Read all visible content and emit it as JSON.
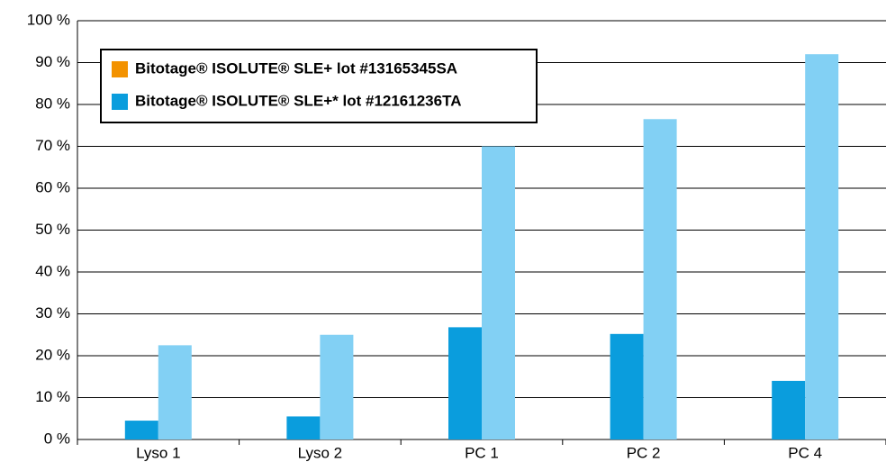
{
  "chart_data": {
    "type": "bar",
    "categories": [
      "Lyso 1",
      "Lyso 2",
      "PC 1",
      "PC 2",
      "PC 4"
    ],
    "series": [
      {
        "name": "Bitotage® ISOLUTE®  SLE+ lot #13165345SA",
        "color": "#0a9ddd",
        "legend_color": "#f39200",
        "values": [
          4.5,
          5.5,
          26.8,
          25.2,
          14
        ]
      },
      {
        "name": "Bitotage® ISOLUTE® SLE+* lot #12161236TA",
        "color": "#82d0f4",
        "legend_color": "#0a9ddd",
        "values": [
          22.5,
          25,
          70,
          76.5,
          92
        ]
      }
    ],
    "ylim": [
      0,
      100
    ],
    "yticks": [
      {
        "value": 0,
        "label": "0 %"
      },
      {
        "value": 10,
        "label": "10 %"
      },
      {
        "value": 20,
        "label": "20 %"
      },
      {
        "value": 30,
        "label": "30 %"
      },
      {
        "value": 40,
        "label": "40 %"
      },
      {
        "value": 50,
        "label": "50 %"
      },
      {
        "value": 60,
        "label": "60 %"
      },
      {
        "value": 70,
        "label": "70 %"
      },
      {
        "value": 80,
        "label": "80 %"
      },
      {
        "value": 90,
        "label": "90 %"
      },
      {
        "value": 100,
        "label": "100 %"
      }
    ],
    "grid": true,
    "legend": "top-left"
  }
}
